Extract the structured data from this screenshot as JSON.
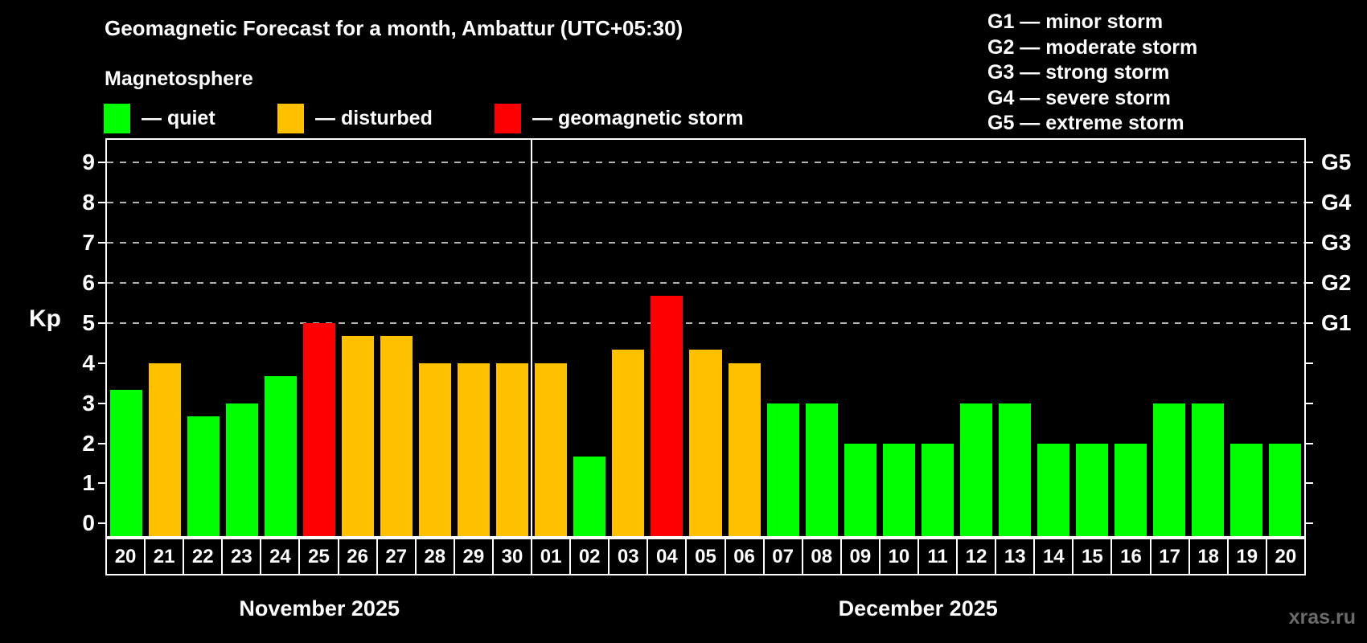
{
  "title": "Geomagnetic Forecast for a month, Ambattur (UTC+05:30)",
  "subtitle": "Magnetosphere",
  "legend": {
    "items": [
      {
        "key": "quiet",
        "label": "— quiet"
      },
      {
        "key": "disturbed",
        "label": "— disturbed"
      },
      {
        "key": "storm",
        "label": "— geomagnetic storm"
      }
    ]
  },
  "storm_scale_legend": [
    "G1 — minor storm",
    "G2 — moderate storm",
    "G3 — strong storm",
    "G4 — severe storm",
    "G5 — extreme storm"
  ],
  "colors": {
    "background": "#000000",
    "status": {
      "quiet": "#00ff00",
      "disturbed": "#ffc000",
      "storm": "#ff0000"
    },
    "axis": "#ffffff",
    "gridline": "#b3b3b3",
    "watermark": "#6a6a6a"
  },
  "axes": {
    "y_label": "Kp",
    "y_ticks": [
      0,
      1,
      2,
      3,
      4,
      5,
      6,
      7,
      8,
      9
    ],
    "right_labels": [
      {
        "kp": 5,
        "label": "G1"
      },
      {
        "kp": 6,
        "label": "G2"
      },
      {
        "kp": 7,
        "label": "G3"
      },
      {
        "kp": 8,
        "label": "G4"
      },
      {
        "kp": 9,
        "label": "G5"
      }
    ]
  },
  "months": [
    {
      "label": "November 2025",
      "day_count": 11
    },
    {
      "label": "December 2025",
      "day_count": 20
    }
  ],
  "watermark": "xras.ru",
  "chart_data": {
    "type": "bar",
    "title": "Geomagnetic Forecast for a month, Ambattur (UTC+05:30)",
    "xlabel": "",
    "ylabel": "Kp",
    "ylim": [
      0,
      9
    ],
    "grid": "dashed horizontal at Kp 5-9 (G1-G5)",
    "legend_position": "top",
    "bars": [
      {
        "month": "November 2025",
        "day": "20",
        "kp": 3.33,
        "status": "quiet"
      },
      {
        "month": "November 2025",
        "day": "21",
        "kp": 4.0,
        "status": "disturbed"
      },
      {
        "month": "November 2025",
        "day": "22",
        "kp": 2.67,
        "status": "quiet"
      },
      {
        "month": "November 2025",
        "day": "23",
        "kp": 3.0,
        "status": "quiet"
      },
      {
        "month": "November 2025",
        "day": "24",
        "kp": 3.67,
        "status": "quiet"
      },
      {
        "month": "November 2025",
        "day": "25",
        "kp": 5.0,
        "status": "storm"
      },
      {
        "month": "November 2025",
        "day": "26",
        "kp": 4.67,
        "status": "disturbed"
      },
      {
        "month": "November 2025",
        "day": "27",
        "kp": 4.67,
        "status": "disturbed"
      },
      {
        "month": "November 2025",
        "day": "28",
        "kp": 4.0,
        "status": "disturbed"
      },
      {
        "month": "November 2025",
        "day": "29",
        "kp": 4.0,
        "status": "disturbed"
      },
      {
        "month": "November 2025",
        "day": "30",
        "kp": 4.0,
        "status": "disturbed"
      },
      {
        "month": "December 2025",
        "day": "01",
        "kp": 4.0,
        "status": "disturbed"
      },
      {
        "month": "December 2025",
        "day": "02",
        "kp": 1.67,
        "status": "quiet"
      },
      {
        "month": "December 2025",
        "day": "03",
        "kp": 4.33,
        "status": "disturbed"
      },
      {
        "month": "December 2025",
        "day": "04",
        "kp": 5.67,
        "status": "storm"
      },
      {
        "month": "December 2025",
        "day": "05",
        "kp": 4.33,
        "status": "disturbed"
      },
      {
        "month": "December 2025",
        "day": "06",
        "kp": 4.0,
        "status": "disturbed"
      },
      {
        "month": "December 2025",
        "day": "07",
        "kp": 3.0,
        "status": "quiet"
      },
      {
        "month": "December 2025",
        "day": "08",
        "kp": 3.0,
        "status": "quiet"
      },
      {
        "month": "December 2025",
        "day": "09",
        "kp": 2.0,
        "status": "quiet"
      },
      {
        "month": "December 2025",
        "day": "10",
        "kp": 2.0,
        "status": "quiet"
      },
      {
        "month": "December 2025",
        "day": "11",
        "kp": 2.0,
        "status": "quiet"
      },
      {
        "month": "December 2025",
        "day": "12",
        "kp": 3.0,
        "status": "quiet"
      },
      {
        "month": "December 2025",
        "day": "13",
        "kp": 3.0,
        "status": "quiet"
      },
      {
        "month": "December 2025",
        "day": "14",
        "kp": 2.0,
        "status": "quiet"
      },
      {
        "month": "December 2025",
        "day": "15",
        "kp": 2.0,
        "status": "quiet"
      },
      {
        "month": "December 2025",
        "day": "16",
        "kp": 2.0,
        "status": "quiet"
      },
      {
        "month": "December 2025",
        "day": "17",
        "kp": 3.0,
        "status": "quiet"
      },
      {
        "month": "December 2025",
        "day": "18",
        "kp": 3.0,
        "status": "quiet"
      },
      {
        "month": "December 2025",
        "day": "19",
        "kp": 2.0,
        "status": "quiet"
      },
      {
        "month": "December 2025",
        "day": "20",
        "kp": 2.0,
        "status": "quiet"
      }
    ]
  }
}
